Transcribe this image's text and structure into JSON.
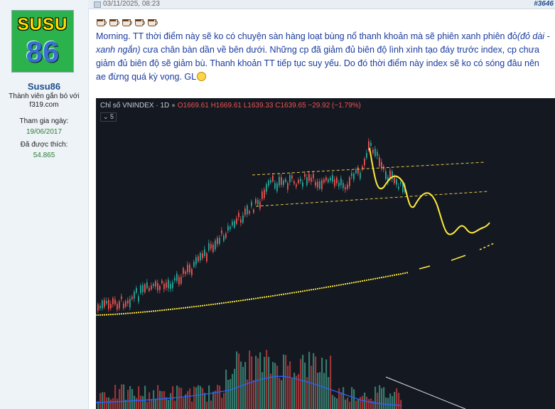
{
  "post": {
    "date": "03/11/2025, 08:23",
    "number": "#3646"
  },
  "user": {
    "avatar_line1": "SUSU",
    "avatar_line2": "86",
    "name": "Susu86",
    "title": "Thành viên gắn bó với f319.com",
    "joined_label": "Tham gia ngày:",
    "joined_value": "19/06/2017",
    "likes_label": "Đã được thích:",
    "likes_value": "54.865"
  },
  "message": {
    "p1": "Morning. TT thời điểm này sẽ ko có chuyện sàn hàng loạt bùng nổ thanh khoản mà sẽ phiên xanh phiên đỏ",
    "p1_italic": "(đỏ dài - xanh ngắn)",
    "p2": " cưa chân bàn dần về bên dưới. Những cp đã giảm đủ biên độ lình xình tạo đáy trước index, cp chưa giảm đủ biên độ sẽ giảm bù. Thanh khoản TT tiếp tục suy yếu. Do đó thời điểm này index sẽ ko có sóng đâu nên ae đừng quá kỳ vọng. GL"
  },
  "chart": {
    "symbol": "Chỉ số VNINDEX · 1D",
    "o": "O1669.61",
    "h": "H1669.61",
    "l": "L1639.33",
    "c": "C1639.65",
    "chg": "−29.92 (−1.79%)",
    "indicator_count": "5",
    "colors": {
      "up": "#26a69a",
      "down": "#ef5350",
      "projection": "#ffeb3b",
      "volume_ma": "#2962ff"
    }
  }
}
